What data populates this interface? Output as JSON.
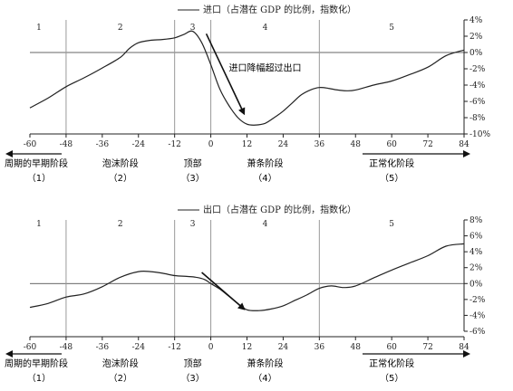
{
  "chart_data": [
    {
      "type": "line",
      "legend": "进口（占潜在 GDP 的比例，指数化）",
      "legend_position": "top-center",
      "x_ticks": [
        -60,
        -48,
        -36,
        -24,
        -12,
        0,
        12,
        24,
        36,
        48,
        60,
        72,
        84
      ],
      "y_ticks": [
        "4%",
        "2%",
        "0%",
        "-2%",
        "-4%",
        "-6%",
        "-8%",
        "-10%"
      ],
      "y_tick_values": [
        4,
        2,
        0,
        -2,
        -4,
        -6,
        -8,
        -10
      ],
      "xlim": [
        -60,
        84
      ],
      "ylim": [
        -10,
        4
      ],
      "phase_boundaries": [
        -48,
        -12,
        0,
        36
      ],
      "phase_labels": [
        "1",
        "2",
        "3",
        "4",
        "5"
      ],
      "phase_label_x": [
        -57,
        -30,
        -6,
        18,
        60
      ],
      "annotation": "进口降幅超过出口",
      "arrow": {
        "x1": -1.5,
        "y1": 2.3,
        "x2": 11,
        "y2": -7.5
      },
      "series": [
        {
          "x": [
            -60,
            -54,
            -48,
            -42,
            -36,
            -30,
            -27,
            -24,
            -20,
            -16,
            -12,
            -9,
            -6,
            -3,
            0,
            3,
            6,
            9,
            12,
            15,
            18,
            21,
            24,
            27,
            30,
            33,
            36,
            39,
            42,
            45,
            48,
            54,
            60,
            66,
            72,
            78,
            84
          ],
          "values": [
            -6.8,
            -5.6,
            -4.2,
            -3.1,
            -1.9,
            -0.6,
            0.5,
            1.2,
            1.5,
            1.6,
            1.8,
            2.2,
            2.6,
            1.2,
            -1.5,
            -4.5,
            -6.5,
            -8.0,
            -8.8,
            -8.9,
            -8.7,
            -8.0,
            -7.2,
            -6.2,
            -5.2,
            -4.6,
            -4.3,
            -4.4,
            -4.6,
            -4.7,
            -4.6,
            -4.0,
            -3.5,
            -2.7,
            -1.8,
            -0.4,
            0.3
          ]
        }
      ]
    },
    {
      "type": "line",
      "legend": "出口（占潜在 GDP 的比例，指数化）",
      "legend_position": "top-center",
      "x_ticks": [
        -60,
        -48,
        -36,
        -24,
        -12,
        0,
        12,
        24,
        36,
        48,
        60,
        72,
        84
      ],
      "y_ticks": [
        "8%",
        "6%",
        "4%",
        "2%",
        "0%",
        "-2%",
        "-4%",
        "-6%"
      ],
      "y_tick_values": [
        8,
        6,
        4,
        2,
        0,
        -2,
        -4,
        -6
      ],
      "xlim": [
        -60,
        84
      ],
      "ylim": [
        -6,
        8
      ],
      "phase_boundaries": [
        -48,
        -12,
        0,
        36
      ],
      "phase_labels": [
        "1",
        "2",
        "3",
        "4",
        "5"
      ],
      "phase_label_x": [
        -57,
        -30,
        -6,
        18,
        60
      ],
      "arrow": {
        "x1": -3,
        "y1": 1.4,
        "x2": 11,
        "y2": -3.2
      },
      "series": [
        {
          "x": [
            -60,
            -54,
            -48,
            -42,
            -36,
            -30,
            -24,
            -20,
            -16,
            -12,
            -8,
            -5,
            -2,
            0,
            3,
            6,
            9,
            12,
            16,
            20,
            24,
            28,
            32,
            36,
            40,
            44,
            48,
            54,
            60,
            66,
            72,
            78,
            84
          ],
          "values": [
            -3.0,
            -2.5,
            -1.7,
            -1.3,
            -0.4,
            0.8,
            1.5,
            1.5,
            1.3,
            1.0,
            0.9,
            0.8,
            0.5,
            0.0,
            -0.7,
            -1.6,
            -2.5,
            -3.3,
            -3.4,
            -3.2,
            -2.8,
            -2.1,
            -1.4,
            -0.6,
            -0.3,
            -0.5,
            -0.3,
            0.7,
            1.7,
            2.6,
            3.5,
            4.7,
            5.0
          ]
        }
      ]
    }
  ],
  "stages": [
    {
      "name": "周期的早期阶段",
      "num": "（1）",
      "x": -60,
      "arrow": "left"
    },
    {
      "name": "泡沫阶段",
      "num": "（2）",
      "x": -30
    },
    {
      "name": "顶部",
      "num": "（3）",
      "x": -6
    },
    {
      "name": "萧条阶段",
      "num": "（4）",
      "x": 18
    },
    {
      "name": "正常化阶段",
      "num": "（5）",
      "x": 60,
      "arrow": "right"
    }
  ],
  "colors": {
    "line": "#222222",
    "grid": "#999999",
    "axis": "#222222"
  }
}
